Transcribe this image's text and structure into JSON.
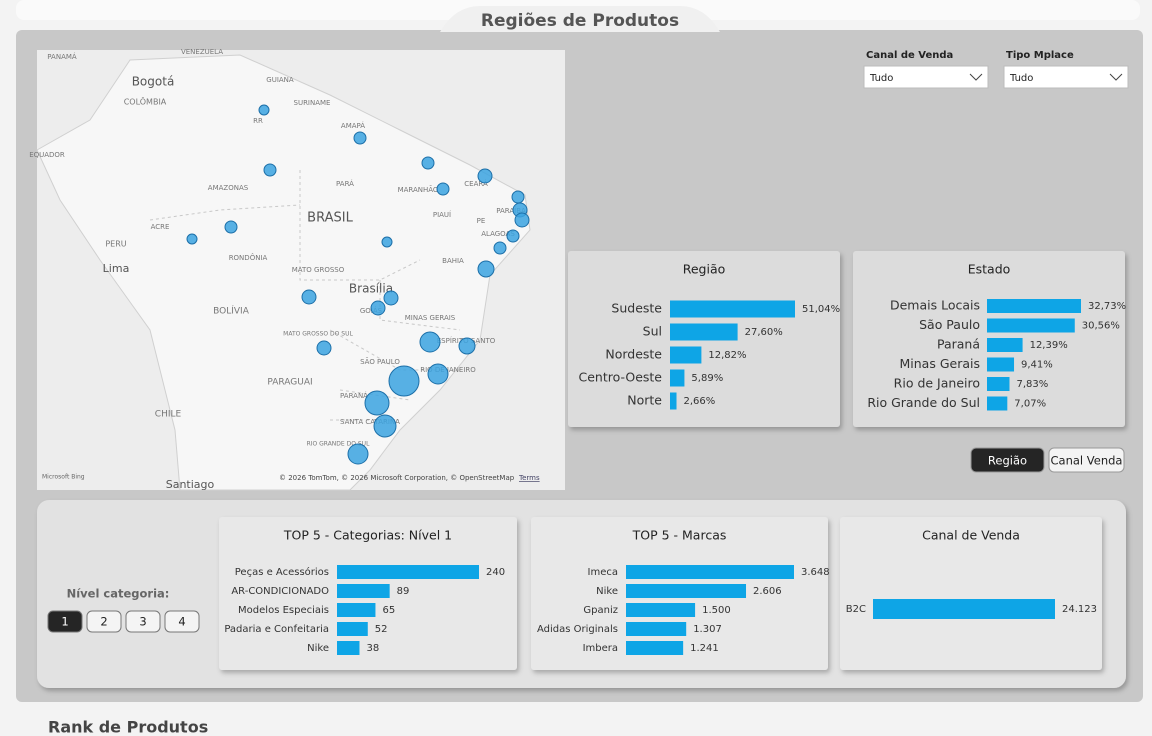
{
  "header": {
    "title": "Regiões de Produtos"
  },
  "filters": [
    {
      "label": "Canal de Venda",
      "value": "Tudo"
    },
    {
      "label": "Tipo Mplace",
      "value": "Tudo"
    }
  ],
  "map": {
    "labels": [
      "PANAMÁ",
      "VENEZUELA",
      "Bogotá",
      "GUIANA",
      "SURINAME",
      "COLÔMBIA",
      "RR",
      "AMAPÁ",
      "EQUADOR",
      "AMAZONAS",
      "PARÁ",
      "MARANHÃO",
      "CEARÁ",
      "BRASIL",
      "PIAUÍ",
      "PE",
      "PARAÍBA",
      "ACRE",
      "ALAGOAS",
      "PERU",
      "RONDÔNIA",
      "Lima",
      "BAHIA",
      "MATO GROSSO",
      "Brasília",
      "BOLÍVIA",
      "GOIÁS",
      "MINAS GERAIS",
      "MATO GROSSO DO SUL",
      "ESPÍRITO SANTO",
      "SÃO PAULO",
      "RIO DE JANEIRO",
      "PARAGUAI",
      "PARANÁ",
      "CHILE",
      "SANTA CATARINA",
      "RIO GRANDE DO SUL",
      "Santiago"
    ],
    "brand": "Microsoft Bing",
    "copyright": "© 2026 TomTom, © 2026 Microsoft Corporation, © OpenStreetMap",
    "terms": "Terms"
  },
  "chart_data": [
    {
      "type": "bar",
      "title": "Região",
      "color": "#0ea5e6",
      "categories": [
        "Sudeste",
        "Sul",
        "Nordeste",
        "Centro-Oeste",
        "Norte"
      ],
      "values": [
        51.04,
        27.6,
        12.82,
        5.89,
        2.66
      ],
      "value_labels": [
        "51,04%",
        "27,60%",
        "12,82%",
        "5,89%",
        "2,66%"
      ]
    },
    {
      "type": "bar",
      "title": "Estado",
      "color": "#0ea5e6",
      "categories": [
        "Demais Locais",
        "São Paulo",
        "Paraná",
        "Minas Gerais",
        "Rio de Janeiro",
        "Rio Grande do Sul"
      ],
      "values": [
        32.73,
        30.56,
        12.39,
        9.41,
        7.83,
        7.07
      ],
      "value_labels": [
        "32,73%",
        "30,56%",
        "12,39%",
        "9,41%",
        "7,83%",
        "7,07%"
      ]
    },
    {
      "type": "bar",
      "title": "TOP 5 - Categorias: Nível 1",
      "color": "#0ea5e6",
      "categories": [
        "Peças e Acessórios",
        "AR-CONDICIONADO",
        "Modelos Especiais",
        "Padaria e Confeitaria",
        "Nike"
      ],
      "values": [
        240,
        89,
        65,
        52,
        38
      ]
    },
    {
      "type": "bar",
      "title": "TOP 5 - Marcas",
      "color": "#0ea5e6",
      "categories": [
        "Imeca",
        "Nike",
        "Gpaniz",
        "Adidas Originals",
        "Imbera"
      ],
      "values": [
        3648,
        2606,
        1500,
        1307,
        1241
      ],
      "value_labels": [
        "3.648",
        "2.606",
        "1.500",
        "1.307",
        "1.241"
      ]
    },
    {
      "type": "bar",
      "title": "Canal de Venda",
      "color": "#0ea5e6",
      "categories": [
        "B2C"
      ],
      "values": [
        24123
      ],
      "value_labels": [
        "24.123"
      ]
    }
  ],
  "toggle": {
    "buttons": [
      "Região",
      "Canal Venda"
    ],
    "active": 0
  },
  "level": {
    "label": "Nível categoria:",
    "buttons": [
      "1",
      "2",
      "3",
      "4"
    ],
    "active": 0
  },
  "footer": {
    "title": "Rank de Produtos"
  }
}
